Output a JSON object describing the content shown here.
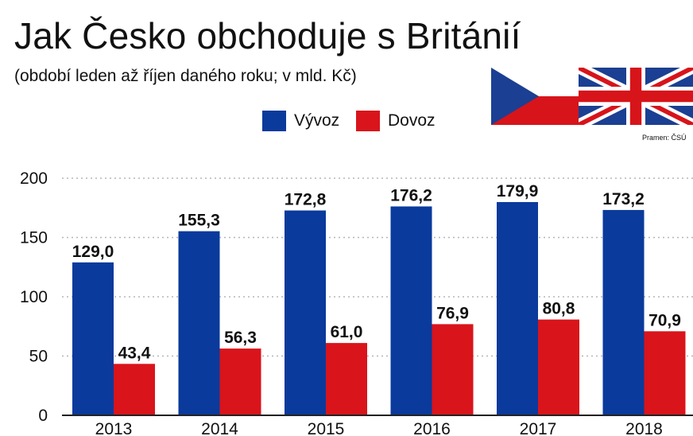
{
  "title": "Jak Česko obchoduje s Británií",
  "subtitle": "(období leden až říjen daného roku; v mld. Kč)",
  "source": "Pramen: ČSÚ",
  "colors": {
    "export": "#0a3a9c",
    "import": "#d9141b",
    "flag_blue": "#1b3f92",
    "flag_red": "#d7141a",
    "grid": "#b5b5b5"
  },
  "icons": [
    "czech-flag-icon",
    "uk-flag-icon"
  ],
  "chart_data": {
    "type": "bar",
    "title": "Jak Česko obchoduje s Británií",
    "subtitle": "(období leden až říjen daného roku; v mld. Kč)",
    "categories": [
      "2013",
      "2014",
      "2015",
      "2016",
      "2017",
      "2018"
    ],
    "series": [
      {
        "name": "Vývoz",
        "values": [
          129.0,
          155.3,
          172.8,
          176.2,
          179.9,
          173.2
        ],
        "labels": [
          "129,0",
          "155,3",
          "172,8",
          "176,2",
          "179,9",
          "173,2"
        ]
      },
      {
        "name": "Dovoz",
        "values": [
          43.4,
          56.3,
          61.0,
          76.9,
          80.8,
          70.9
        ],
        "labels": [
          "43,4",
          "56,3",
          "61,0",
          "76,9",
          "80,8",
          "70,9"
        ]
      }
    ],
    "yticks": [
      "0",
      "50",
      "100",
      "150",
      "200"
    ],
    "ylim": [
      0,
      200
    ],
    "xlabel": "",
    "ylabel": "",
    "grid": "horizontal dotted",
    "legend": "top-center"
  }
}
